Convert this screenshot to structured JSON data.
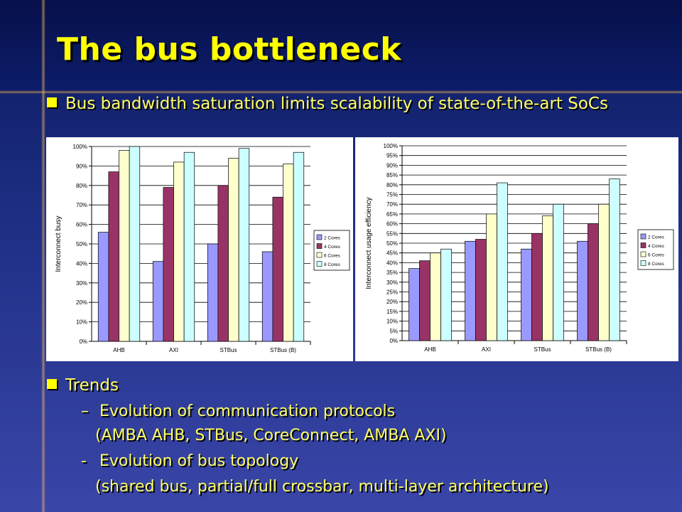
{
  "title": "The bus bottleneck",
  "bullets": {
    "main": "Bus bandwidth saturation limits scalability of state-of-the-art SoCs",
    "trends": "Trends",
    "items": [
      {
        "marker": "–",
        "line1": "Evolution of communication protocols",
        "line2": "(AMBA AHB, STBus, CoreConnect, AMBA AXI)"
      },
      {
        "marker": "-",
        "line1": "Evolution of bus topology",
        "line2": "(shared bus, partial/full crossbar, multi-layer architecture)"
      }
    ]
  },
  "colors": [
    "#9999ff",
    "#993366",
    "#ffffcc",
    "#ccffff"
  ],
  "chart_data": [
    {
      "type": "bar",
      "categories": [
        "AHB",
        "AXI",
        "STBus",
        "STBus (B)"
      ],
      "series": [
        {
          "name": "2 Cores",
          "values": [
            56,
            41,
            50,
            46
          ]
        },
        {
          "name": "4 Cores",
          "values": [
            87,
            79,
            80,
            74
          ]
        },
        {
          "name": "6 Cores",
          "values": [
            98,
            92,
            94,
            91
          ]
        },
        {
          "name": "8 Cores",
          "values": [
            100,
            97,
            99,
            97
          ]
        }
      ],
      "ylabel": "Interconnect busy",
      "ylim": [
        0,
        100
      ],
      "yticks": [
        "0%",
        "10%",
        "20%",
        "30%",
        "40%",
        "50%",
        "60%",
        "70%",
        "80%",
        "90%",
        "100%"
      ],
      "grid": true,
      "legend": "right"
    },
    {
      "type": "bar",
      "categories": [
        "AHB",
        "AXI",
        "STBus",
        "STBus (B)"
      ],
      "series": [
        {
          "name": "2 Cores",
          "values": [
            37,
            51,
            47,
            51
          ]
        },
        {
          "name": "4 Cores",
          "values": [
            41,
            52,
            55,
            60
          ]
        },
        {
          "name": "6 Cores",
          "values": [
            45,
            65,
            64,
            70
          ]
        },
        {
          "name": "8 Cores",
          "values": [
            47,
            81,
            70,
            83
          ]
        }
      ],
      "ylabel": "Interconnect usage efficiency",
      "ylim": [
        0,
        100
      ],
      "yticks": [
        "0%",
        "5%",
        "10%",
        "15%",
        "20%",
        "25%",
        "30%",
        "35%",
        "40%",
        "45%",
        "50%",
        "55%",
        "60%",
        "65%",
        "70%",
        "75%",
        "80%",
        "85%",
        "90%",
        "95%",
        "100%"
      ],
      "grid": true,
      "legend": "right"
    }
  ]
}
